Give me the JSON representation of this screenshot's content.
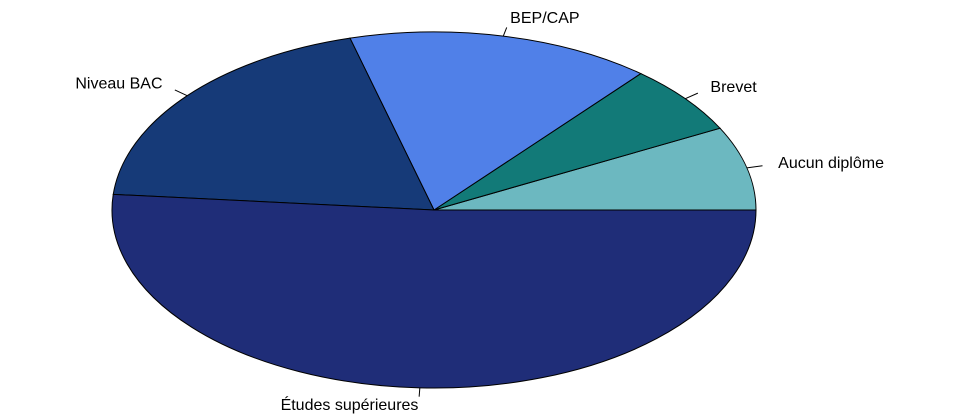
{
  "chart_data": {
    "type": "pie",
    "categories": [
      "Aucun diplôme",
      "Brevet",
      "BEP/CAP",
      "Niveau BAC",
      "Études supérieures"
    ],
    "values": [
      7.6,
      6.3,
      15.3,
      19.4,
      51.4
    ],
    "colors": [
      "#6cb8c0",
      "#127a78",
      "#5080e8",
      "#163a78",
      "#1f2d78"
    ],
    "start_angle": 0,
    "direction": "counterclockwise"
  }
}
